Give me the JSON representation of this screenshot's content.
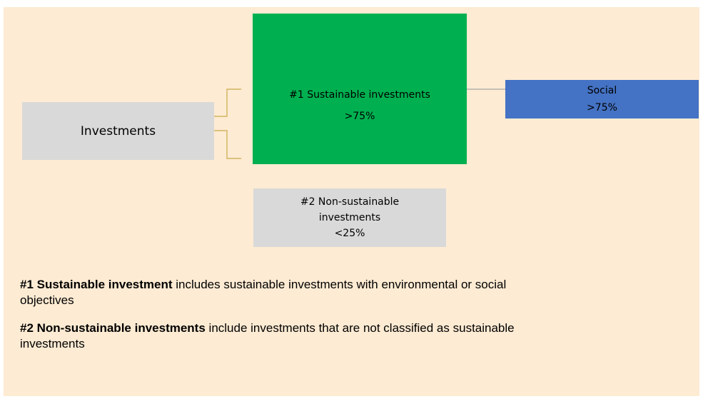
{
  "nodes": [
    {
      "id": "investments",
      "lines": [
        "Investments"
      ]
    },
    {
      "id": "sustainable",
      "lines": [
        "#1 Sustainable investments",
        ">75%"
      ]
    },
    {
      "id": "social",
      "lines": [
        "Social",
        ">75%"
      ]
    },
    {
      "id": "non-sustainable",
      "lines": [
        "#2 Non-sustainable",
        "investments",
        "<25%"
      ]
    }
  ],
  "notes": [
    {
      "term": "#1 Sustainable investment",
      "text": "includes sustainable investments with environmental or social objectives"
    },
    {
      "term": "#2 Non-sustainable investments",
      "text": "include investments that are not classified as sustainable investments"
    }
  ]
}
